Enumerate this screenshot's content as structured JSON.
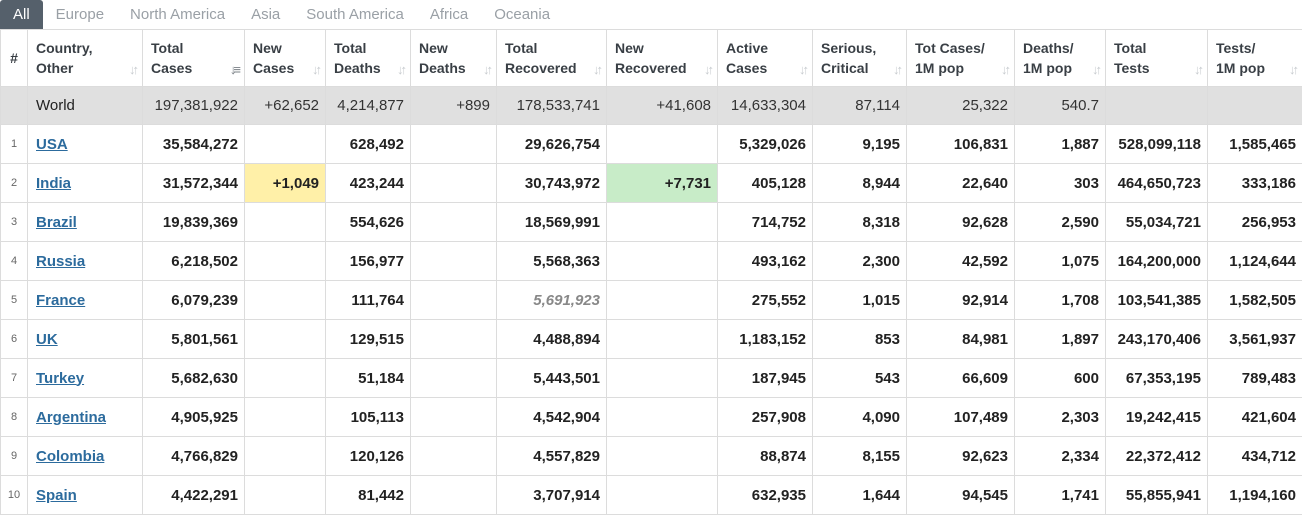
{
  "tabs": [
    "All",
    "Europe",
    "North America",
    "Asia",
    "South America",
    "Africa",
    "Oceania"
  ],
  "active_tab": "All",
  "colors": {
    "tab_active_bg": "#55606b",
    "link": "#2c6b9d",
    "world_row_bg": "#e0e0e0",
    "new_cases_highlight": "#fff0a8",
    "new_recovered_highlight": "#c8ecc8"
  },
  "headers": [
    {
      "line1": "#",
      "line2": ""
    },
    {
      "line1": "Country,",
      "line2": "Other"
    },
    {
      "line1": "Total",
      "line2": "Cases"
    },
    {
      "line1": "New",
      "line2": "Cases"
    },
    {
      "line1": "Total",
      "line2": "Deaths"
    },
    {
      "line1": "New",
      "line2": "Deaths"
    },
    {
      "line1": "Total",
      "line2": "Recovered"
    },
    {
      "line1": "New",
      "line2": "Recovered"
    },
    {
      "line1": "Active",
      "line2": "Cases"
    },
    {
      "line1": "Serious,",
      "line2": "Critical"
    },
    {
      "line1": "Tot Cases/",
      "line2": "1M pop"
    },
    {
      "line1": "Deaths/",
      "line2": "1M pop"
    },
    {
      "line1": "Total",
      "line2": "Tests"
    },
    {
      "line1": "Tests/",
      "line2": "1M pop"
    }
  ],
  "world": {
    "name": "World",
    "total_cases": "197,381,922",
    "new_cases": "+62,652",
    "total_deaths": "4,214,877",
    "new_deaths": "+899",
    "total_recovered": "178,533,741",
    "new_recovered": "+41,608",
    "active_cases": "14,633,304",
    "serious": "87,114",
    "cases_per_1m": "25,322",
    "deaths_per_1m": "540.7",
    "total_tests": "",
    "tests_per_1m": ""
  },
  "rows": [
    {
      "rank": "1",
      "country": "USA",
      "total_cases": "35,584,272",
      "new_cases": "",
      "total_deaths": "628,492",
      "new_deaths": "",
      "total_recovered": "29,626,754",
      "new_recovered": "",
      "active_cases": "5,329,026",
      "serious": "9,195",
      "cases_per_1m": "106,831",
      "deaths_per_1m": "1,887",
      "total_tests": "528,099,118",
      "tests_per_1m": "1,585,465"
    },
    {
      "rank": "2",
      "country": "India",
      "total_cases": "31,572,344",
      "new_cases": "+1,049",
      "total_deaths": "423,244",
      "new_deaths": "",
      "total_recovered": "30,743,972",
      "new_recovered": "+7,731",
      "active_cases": "405,128",
      "serious": "8,944",
      "cases_per_1m": "22,640",
      "deaths_per_1m": "303",
      "total_tests": "464,650,723",
      "tests_per_1m": "333,186"
    },
    {
      "rank": "3",
      "country": "Brazil",
      "total_cases": "19,839,369",
      "new_cases": "",
      "total_deaths": "554,626",
      "new_deaths": "",
      "total_recovered": "18,569,991",
      "new_recovered": "",
      "active_cases": "714,752",
      "serious": "8,318",
      "cases_per_1m": "92,628",
      "deaths_per_1m": "2,590",
      "total_tests": "55,034,721",
      "tests_per_1m": "256,953"
    },
    {
      "rank": "4",
      "country": "Russia",
      "total_cases": "6,218,502",
      "new_cases": "",
      "total_deaths": "156,977",
      "new_deaths": "",
      "total_recovered": "5,568,363",
      "new_recovered": "",
      "active_cases": "493,162",
      "serious": "2,300",
      "cases_per_1m": "42,592",
      "deaths_per_1m": "1,075",
      "total_tests": "164,200,000",
      "tests_per_1m": "1,124,644"
    },
    {
      "rank": "5",
      "country": "France",
      "total_cases": "6,079,239",
      "new_cases": "",
      "total_deaths": "111,764",
      "new_deaths": "",
      "total_recovered": "5,691,923",
      "new_recovered": "",
      "active_cases": "275,552",
      "serious": "1,015",
      "cases_per_1m": "92,914",
      "deaths_per_1m": "1,708",
      "total_tests": "103,541,385",
      "tests_per_1m": "1,582,505"
    },
    {
      "rank": "6",
      "country": "UK",
      "total_cases": "5,801,561",
      "new_cases": "",
      "total_deaths": "129,515",
      "new_deaths": "",
      "total_recovered": "4,488,894",
      "new_recovered": "",
      "active_cases": "1,183,152",
      "serious": "853",
      "cases_per_1m": "84,981",
      "deaths_per_1m": "1,897",
      "total_tests": "243,170,406",
      "tests_per_1m": "3,561,937"
    },
    {
      "rank": "7",
      "country": "Turkey",
      "total_cases": "5,682,630",
      "new_cases": "",
      "total_deaths": "51,184",
      "new_deaths": "",
      "total_recovered": "5,443,501",
      "new_recovered": "",
      "active_cases": "187,945",
      "serious": "543",
      "cases_per_1m": "66,609",
      "deaths_per_1m": "600",
      "total_tests": "67,353,195",
      "tests_per_1m": "789,483"
    },
    {
      "rank": "8",
      "country": "Argentina",
      "total_cases": "4,905,925",
      "new_cases": "",
      "total_deaths": "105,113",
      "new_deaths": "",
      "total_recovered": "4,542,904",
      "new_recovered": "",
      "active_cases": "257,908",
      "serious": "4,090",
      "cases_per_1m": "107,489",
      "deaths_per_1m": "2,303",
      "total_tests": "19,242,415",
      "tests_per_1m": "421,604"
    },
    {
      "rank": "9",
      "country": "Colombia",
      "total_cases": "4,766,829",
      "new_cases": "",
      "total_deaths": "120,126",
      "new_deaths": "",
      "total_recovered": "4,557,829",
      "new_recovered": "",
      "active_cases": "88,874",
      "serious": "8,155",
      "cases_per_1m": "92,623",
      "deaths_per_1m": "2,334",
      "total_tests": "22,372,412",
      "tests_per_1m": "434,712"
    },
    {
      "rank": "10",
      "country": "Spain",
      "total_cases": "4,422,291",
      "new_cases": "",
      "total_deaths": "81,442",
      "new_deaths": "",
      "total_recovered": "3,707,914",
      "new_recovered": "",
      "active_cases": "632,935",
      "serious": "1,644",
      "cases_per_1m": "94,545",
      "deaths_per_1m": "1,741",
      "total_tests": "55,855,941",
      "tests_per_1m": "1,194,160"
    }
  ]
}
